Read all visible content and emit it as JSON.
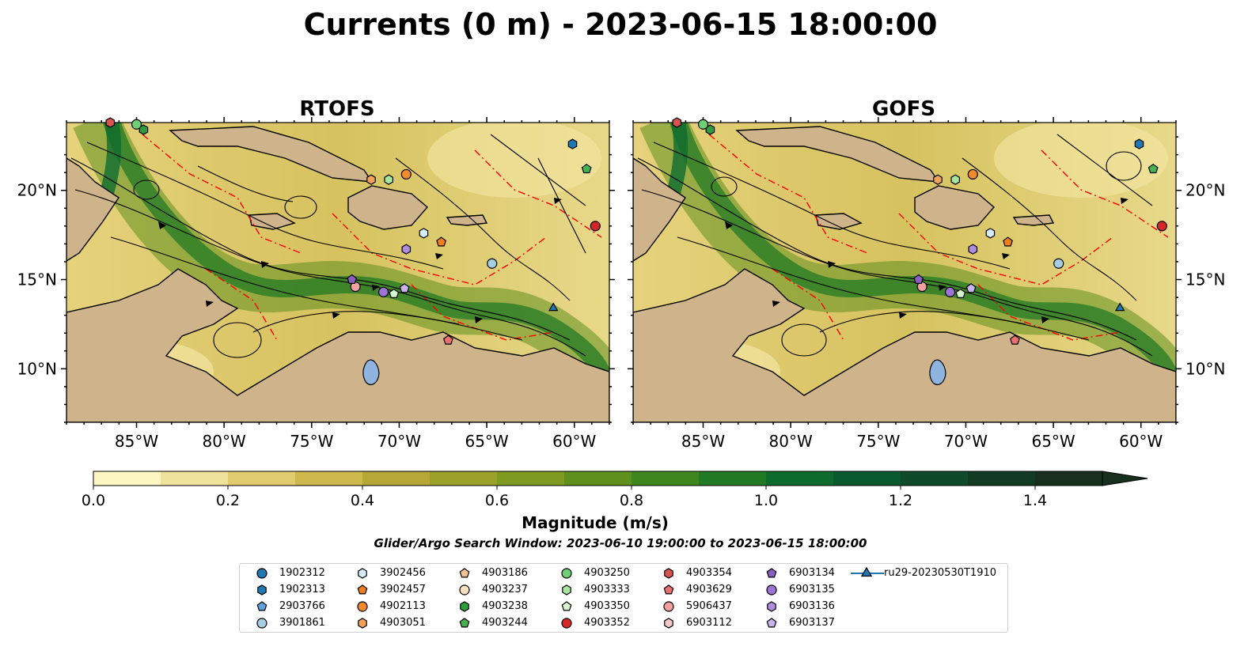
{
  "figure": {
    "title": "Currents (0 m) - 2023-06-15 18:00:00",
    "search_window": "Glider/Argo Search Window: 2023-06-10 19:00:00 to 2023-06-15 18:00:00"
  },
  "chart_data": [
    {
      "type": "heatmap",
      "title": "RTOFS",
      "xlim": [
        -89.0,
        -58.0
      ],
      "ylim": [
        7.0,
        23.8
      ],
      "x_ticks": [
        "85°W",
        "80°W",
        "75°W",
        "70°W",
        "65°W",
        "60°W"
      ],
      "y_ticks": [
        "20°N",
        "15°N",
        "10°N"
      ],
      "y_tick_side": "left",
      "field": "surface current magnitude with streamlines",
      "grid": false
    },
    {
      "type": "heatmap",
      "title": "GOFS",
      "xlim": [
        -89.0,
        -58.0
      ],
      "ylim": [
        7.0,
        23.8
      ],
      "x_ticks": [
        "85°W",
        "80°W",
        "75°W",
        "70°W",
        "65°W",
        "60°W"
      ],
      "y_ticks": [
        "20°N",
        "15°N",
        "10°N"
      ],
      "y_tick_side": "right",
      "field": "surface current magnitude with streamlines",
      "grid": false
    }
  ],
  "colorbar": {
    "label": "Magnitude (m/s)",
    "min": 0.0,
    "max": 1.5,
    "step": 0.1,
    "extend": "max",
    "tick_labels": [
      "0.0",
      "0.2",
      "0.4",
      "0.6",
      "0.8",
      "1.0",
      "1.2",
      "1.4"
    ],
    "colors": [
      "#fdf6c3",
      "#efe29a",
      "#e0cc6e",
      "#cdb94d",
      "#b6a838",
      "#9ba12b",
      "#7f9a20",
      "#5f8f1d",
      "#3f861f",
      "#217a24",
      "#0d6b2e",
      "#0a5a2f",
      "#0f4a2a",
      "#133a23",
      "#16301d"
    ]
  },
  "markers": [
    {
      "id": "1902312",
      "shape": "circle",
      "color": "#1f78b4",
      "lon": null,
      "lat": null
    },
    {
      "id": "1902313",
      "shape": "hexagon",
      "color": "#1f78b4",
      "lon": -60.1,
      "lat": 22.6
    },
    {
      "id": "2903766",
      "shape": "pentagon",
      "color": "#5fa2dd",
      "lon": null,
      "lat": null
    },
    {
      "id": "3901861",
      "shape": "circle",
      "color": "#a6cee3",
      "lon": -64.7,
      "lat": 15.9
    },
    {
      "id": "3902456",
      "shape": "hexagon",
      "color": "#d6ecf8",
      "lon": -68.6,
      "lat": 17.6
    },
    {
      "id": "3902457",
      "shape": "pentagon",
      "color": "#ef7f1a",
      "lon": -67.6,
      "lat": 17.1
    },
    {
      "id": "4902113",
      "shape": "circle",
      "color": "#f08a2c",
      "lon": -69.6,
      "lat": 20.9
    },
    {
      "id": "4903051",
      "shape": "hexagon",
      "color": "#f3a25b",
      "lon": -71.6,
      "lat": 20.6
    },
    {
      "id": "4903186",
      "shape": "pentagon",
      "color": "#f7c28f",
      "lon": null,
      "lat": null
    },
    {
      "id": "4903237",
      "shape": "circle",
      "color": "#fde0c2",
      "lon": null,
      "lat": null
    },
    {
      "id": "4903238",
      "shape": "hexagon",
      "color": "#2e9e3d",
      "lon": -84.6,
      "lat": 23.4
    },
    {
      "id": "4903244",
      "shape": "pentagon",
      "color": "#45b24f",
      "lon": -59.3,
      "lat": 21.2
    },
    {
      "id": "4903250",
      "shape": "circle",
      "color": "#6fcf74",
      "lon": -85.0,
      "lat": 23.7
    },
    {
      "id": "4903333",
      "shape": "hexagon",
      "color": "#a6e59d",
      "lon": -70.6,
      "lat": 20.6
    },
    {
      "id": "4903350",
      "shape": "pentagon",
      "color": "#d5f5cf",
      "lon": -70.3,
      "lat": 14.2
    },
    {
      "id": "4903352",
      "shape": "circle",
      "color": "#d62728",
      "lon": -58.8,
      "lat": 18.0
    },
    {
      "id": "4903354",
      "shape": "hexagon",
      "color": "#d9534f",
      "lon": -86.5,
      "lat": 23.8
    },
    {
      "id": "4903629",
      "shape": "pentagon",
      "color": "#ea7070",
      "lon": -67.2,
      "lat": 11.6
    },
    {
      "id": "5906437",
      "shape": "circle",
      "color": "#f4a0a0",
      "lon": -72.5,
      "lat": 14.6
    },
    {
      "id": "6903112",
      "shape": "hexagon",
      "color": "#f7c7c7",
      "lon": null,
      "lat": null
    },
    {
      "id": "6903134",
      "shape": "pentagon",
      "color": "#8b5fbf",
      "lon": -72.7,
      "lat": 15.0
    },
    {
      "id": "6903135",
      "shape": "circle",
      "color": "#9b74d4",
      "lon": -70.9,
      "lat": 14.3
    },
    {
      "id": "6903136",
      "shape": "hexagon",
      "color": "#b08ce0",
      "lon": -69.6,
      "lat": 16.7
    },
    {
      "id": "6903137",
      "shape": "pentagon",
      "color": "#c9b3ee",
      "lon": -69.7,
      "lat": 14.5
    },
    {
      "id": "ru29-20230530T1910",
      "shape": "triangle-line",
      "color": "#1f78b4",
      "lon": -61.2,
      "lat": 13.4
    }
  ]
}
